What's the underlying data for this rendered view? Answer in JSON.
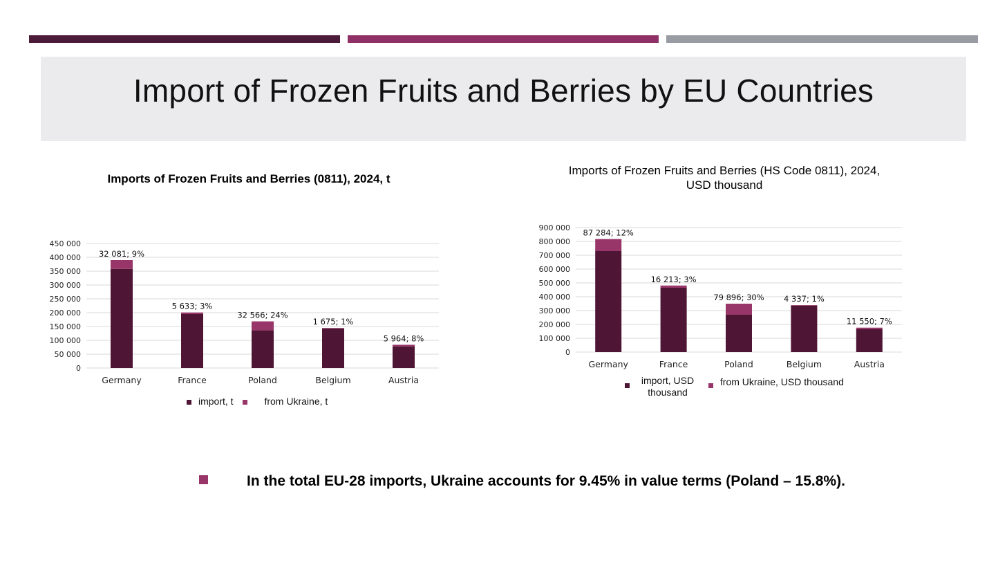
{
  "colors": {
    "strip_dark": "#4c1b3a",
    "strip_mid": "#8f3166",
    "strip_gray": "#999ca3",
    "import_series": "#4e1535",
    "ukraine_series": "#983669",
    "grid": "#d8d8d8",
    "bullet": "#983669"
  },
  "slide": {
    "title": "Import of Frozen Fruits and Berries by EU Countries",
    "bullet_text": "In the total EU-28 imports, Ukraine accounts for 9.45% in value terms (Poland – 15.8%)."
  },
  "chart_data": [
    {
      "type": "bar",
      "stacked": true,
      "title": "Imports of Frozen Fruits and Berries (0811), 2024, t",
      "categories": [
        "Germany",
        "France",
        "Poland",
        "Belgium",
        "Austria"
      ],
      "series": [
        {
          "name": "import, t",
          "values": [
            358000,
            195000,
            136000,
            143000,
            78000
          ]
        },
        {
          "name": "from Ukraine, t",
          "values": [
            32081,
            5633,
            32566,
            1675,
            5964
          ]
        }
      ],
      "data_labels": [
        "32 081; 9%",
        "5 633; 3%",
        "32 566; 24%",
        "1 675; 1%",
        "5 964; 8%"
      ],
      "ylim": [
        0,
        450000
      ],
      "yticks": [
        0,
        50000,
        100000,
        150000,
        200000,
        250000,
        300000,
        350000,
        400000,
        450000
      ],
      "ytick_labels": [
        "0",
        "50 000",
        "100 000",
        "150 000",
        "200 000",
        "250 000",
        "300 000",
        "350 000",
        "400 000",
        "450 000"
      ],
      "grid": true,
      "legend": "bottom"
    },
    {
      "type": "bar",
      "stacked": true,
      "title": "Imports of Frozen Fruits and Berries (HS Code 0811), 2024,\nUSD thousand",
      "categories": [
        "Germany",
        "France",
        "Poland",
        "Belgium",
        "Austria"
      ],
      "series": [
        {
          "name": "import, USD thousand",
          "values": [
            730000,
            465000,
            270000,
            335000,
            165000
          ]
        },
        {
          "name": "from Ukraine, USD thousand",
          "values": [
            87284,
            16213,
            79896,
            4337,
            11550
          ]
        }
      ],
      "data_labels": [
        "87 284; 12%",
        "16 213; 3%",
        "79 896; 30%",
        "4 337; 1%",
        "11 550; 7%"
      ],
      "ylim": [
        0,
        900000
      ],
      "yticks": [
        0,
        100000,
        200000,
        300000,
        400000,
        500000,
        600000,
        700000,
        800000,
        900000
      ],
      "ytick_labels": [
        "0",
        "100 000",
        "200 000",
        "300 000",
        "400 000",
        "500 000",
        "600 000",
        "700 000",
        "800 000",
        "900 000"
      ],
      "grid": true,
      "legend": "bottom"
    }
  ]
}
